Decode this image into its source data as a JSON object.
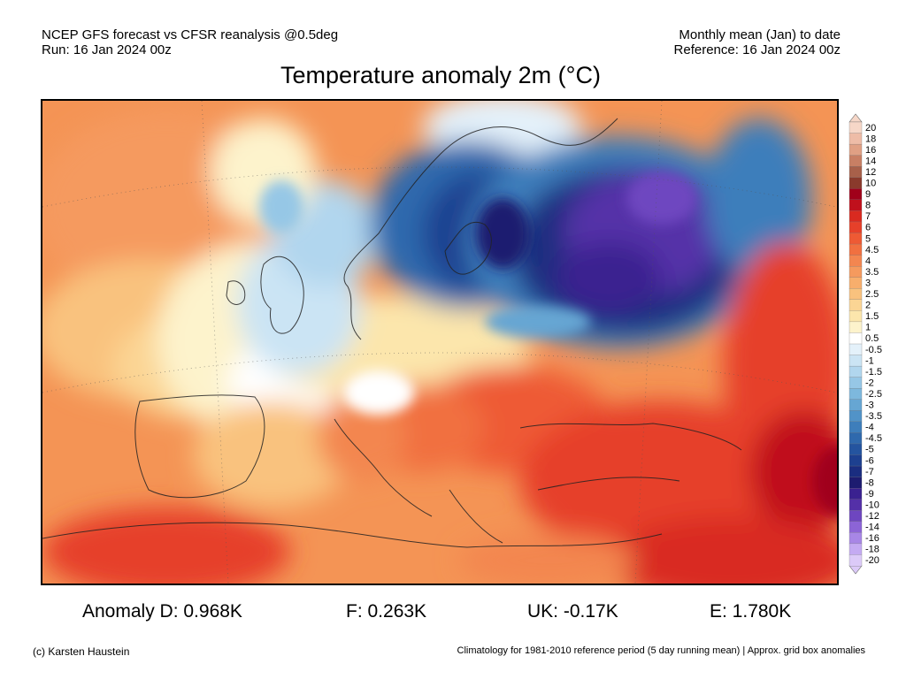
{
  "header": {
    "line1_left": "NCEP GFS forecast vs CFSR reanalysis @0.5deg",
    "line2_left": "Run: 16 Jan 2024 00z",
    "line1_right": "Monthly mean (Jan) to date",
    "line2_right": "Reference: 16 Jan 2024 00z"
  },
  "title": "Temperature anomaly 2m (°C)",
  "colorbar": {
    "levels": [
      "20",
      "18",
      "16",
      "14",
      "12",
      "10",
      "9",
      "8",
      "7",
      "6",
      "5",
      "4.5",
      "4",
      "3.5",
      "3",
      "2.5",
      "2",
      "1.5",
      "1",
      "0.5",
      "-0.5",
      "-1",
      "-1.5",
      "-2",
      "-2.5",
      "-3",
      "-3.5",
      "-4",
      "-4.5",
      "-5",
      "-6",
      "-7",
      "-8",
      "-9",
      "-10",
      "-12",
      "-14",
      "-16",
      "-18",
      "-20"
    ],
    "colors": [
      "#f6d7c8",
      "#eebca7",
      "#e0a084",
      "#c87f64",
      "#a8604a",
      "#8a3a2c",
      "#a0001a",
      "#c0101c",
      "#d92a20",
      "#e6402a",
      "#ee5a34",
      "#f17040",
      "#f38650",
      "#f59a5e",
      "#f7ae6c",
      "#f9c27e",
      "#fbd594",
      "#fce6ac",
      "#fdf3cc",
      "#ffffff",
      "#e4f1fa",
      "#cbe4f4",
      "#b1d6ee",
      "#96c7e6",
      "#7db8dd",
      "#66a6d3",
      "#5193c8",
      "#3e7ebb",
      "#2f69ad",
      "#24549f",
      "#1d4090",
      "#1a2d80",
      "#1d1c70",
      "#3a2190",
      "#5430a8",
      "#6e46c0",
      "#8c64d6",
      "#a886e6",
      "#c4aaf2",
      "#dccaf8"
    ]
  },
  "stats": {
    "d": "Anomaly D: 0.968K",
    "f": "F: 0.263K",
    "uk": "UK: -0.17K",
    "e": "E: 1.780K"
  },
  "footer": {
    "left": "(c) Karsten Haustein",
    "right": "Climatology for 1981-2010 reference period (5 day running mean) | Approx. grid box anomalies"
  }
}
